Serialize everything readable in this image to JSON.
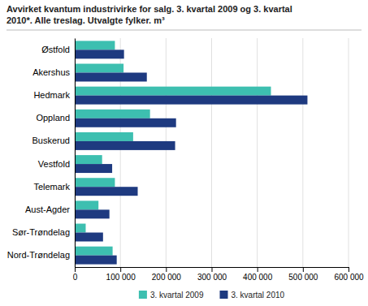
{
  "chart_data": {
    "type": "bar",
    "orientation": "horizontal",
    "title": "Avvirket kvantum industrivirke for salg. 3. kvartal 2009 og 3. kvartal\n2010*. Alle treslag. Utvalgte fylker. m³",
    "categories": [
      "Østfold",
      "Akershus",
      "Hedmark",
      "Oppland",
      "Buskerud",
      "Vestfold",
      "Telemark",
      "Aust-Agder",
      "Sør-Trøndelag",
      "Nord-Trøndelag"
    ],
    "series": [
      {
        "name": "3. kvartal 2009",
        "color": "#3dbfb0",
        "values": [
          88000,
          107000,
          430000,
          165000,
          128000,
          60000,
          88000,
          52000,
          24000,
          83000
        ]
      },
      {
        "name": "3. kvartal 2010",
        "color": "#1e3a80",
        "values": [
          108000,
          158000,
          510000,
          222000,
          220000,
          82000,
          138000,
          76000,
          62000,
          92000
        ]
      }
    ],
    "xlim": [
      0,
      600000
    ],
    "xticks": [
      0,
      {
        "value": 100000,
        "label": "100 000"
      },
      {
        "value": 200000,
        "label": "200 000"
      },
      {
        "value": 300000,
        "label": "300 000"
      },
      {
        "value": 400000,
        "label": "400 000"
      },
      {
        "value": 500000,
        "label": "500 000"
      },
      {
        "value": 600000,
        "label": "600 000"
      }
    ],
    "grid": true,
    "legend": "bottom"
  }
}
